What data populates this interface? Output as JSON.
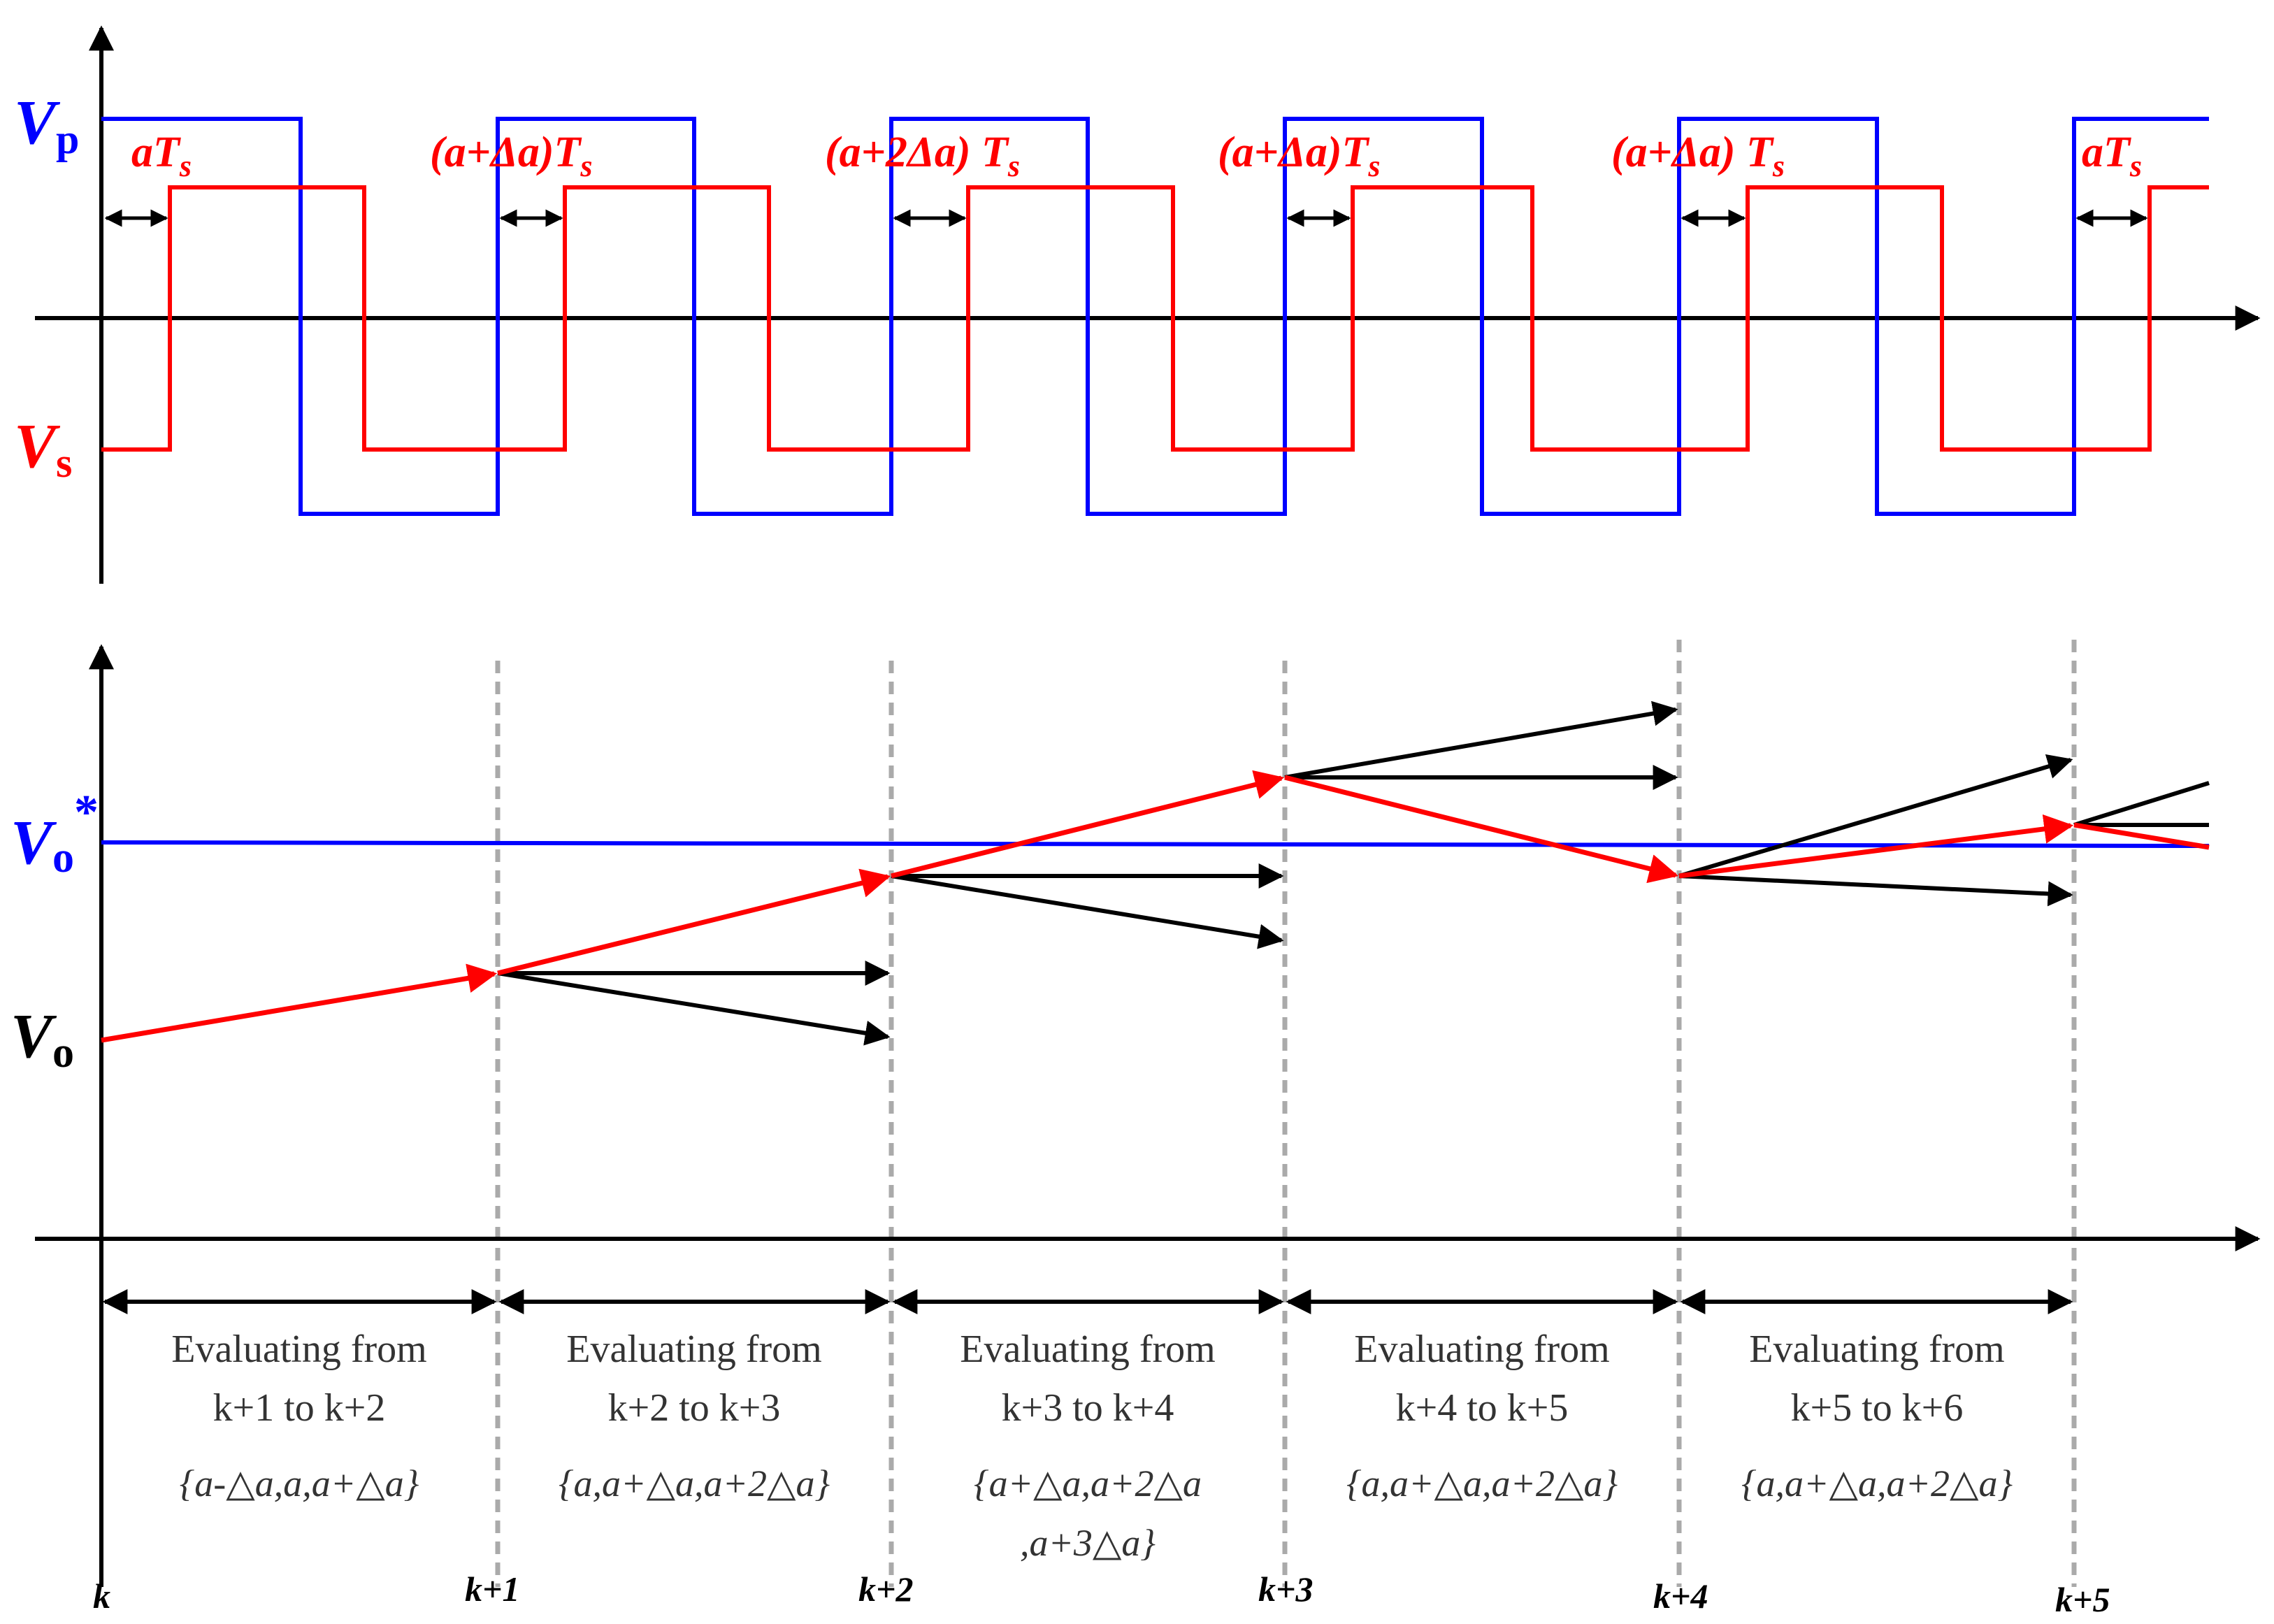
{
  "top_panel": {
    "vp_label": {
      "main": "V",
      "sub": "p"
    },
    "vs_label": {
      "main": "V",
      "sub": "s"
    },
    "phase_shifts": [
      {
        "text": "aT",
        "sub": "s"
      },
      {
        "text": "(a+Δa)T",
        "sub": "s"
      },
      {
        "text": "(a+2Δa) T",
        "sub": "s"
      },
      {
        "text": "(a+Δa)T",
        "sub": "s"
      },
      {
        "text": "(a+Δa) T",
        "sub": "s"
      },
      {
        "text": "aT",
        "sub": "s"
      }
    ]
  },
  "bottom_panel": {
    "vo_ref_label": {
      "main": "V",
      "sub": "o",
      "sup": "*"
    },
    "vo_label": {
      "main": "V",
      "sub": "o"
    },
    "intervals": [
      {
        "line1": "Evaluating from",
        "line2": "k+1 to k+2",
        "set1": "{a-△a,a,a+△a}",
        "set2": ""
      },
      {
        "line1": "Evaluating from",
        "line2": "k+2 to k+3",
        "set1": "{a,a+△a,a+2△a}",
        "set2": ""
      },
      {
        "line1": "Evaluating from",
        "line2": "k+3 to k+4",
        "set1": "{a+△a,a+2△a",
        "set2": ",a+3△a}"
      },
      {
        "line1": "Evaluating from",
        "line2": "k+4 to k+5",
        "set1": "{a,a+△a,a+2△a}",
        "set2": ""
      },
      {
        "line1": "Evaluating from",
        "line2": "k+5 to k+6",
        "set1": "{a,a+△a,a+2△a}",
        "set2": ""
      }
    ],
    "k_labels": [
      "k",
      "k+1",
      "k+2",
      "k+3",
      "k+4",
      "k+5"
    ]
  },
  "colors": {
    "primary": "#0000ff",
    "secondary": "#ff0000",
    "axis": "#000000",
    "grid": "#aaaaaa"
  }
}
